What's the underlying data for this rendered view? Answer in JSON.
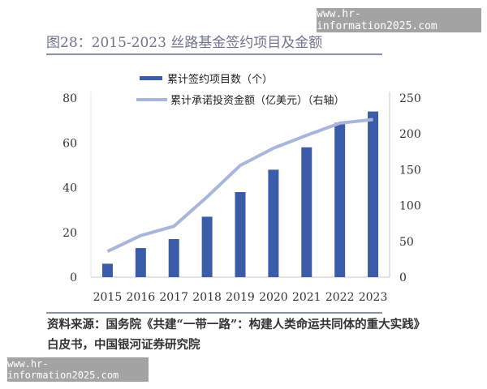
{
  "watermark": "www.hr-information2025.com",
  "title": "图28：2015-2023 丝路基金签约项目及金额",
  "source_line1": "资料来源：国务院《共建“一带一路”：构建人类命运共同体的重大实践》",
  "source_line2": "白皮书，中国银河证券研究院",
  "chart_data": {
    "type": "bar+line",
    "categories": [
      "2015",
      "2016",
      "2017",
      "2018",
      "2019",
      "2020",
      "2021",
      "2022",
      "2023"
    ],
    "series": [
      {
        "name": "累计签约项目数（个）",
        "type": "bar",
        "axis": "left",
        "color": "#3b5ca8",
        "values": [
          6,
          13,
          17,
          27,
          38,
          48,
          58,
          69,
          74
        ]
      },
      {
        "name": "累计承诺投资金额（亿美元）（右轴）",
        "type": "line",
        "axis": "right",
        "color": "#a9b6dc",
        "values": [
          36,
          58,
          71,
          112,
          156,
          180,
          198,
          215,
          220
        ]
      }
    ],
    "left_axis": {
      "min": 0,
      "max": 80,
      "ticks": [
        "0",
        "20",
        "40",
        "60",
        "80"
      ]
    },
    "right_axis": {
      "min": 0,
      "max": 250,
      "ticks": [
        "0",
        "50",
        "100",
        "150",
        "200",
        "250"
      ]
    },
    "grid": false,
    "legend": "top"
  }
}
